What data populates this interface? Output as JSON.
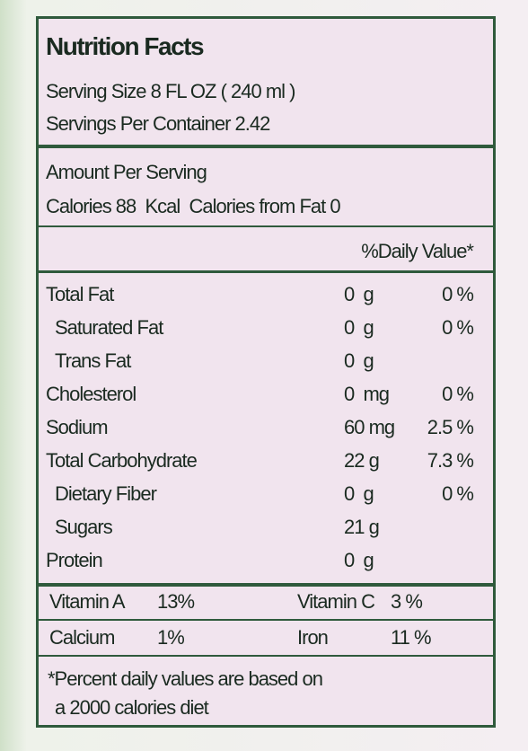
{
  "header": {
    "title": "Nutrition Facts",
    "serving_size": "Serving Size 8 FL OZ ( 240 ml )",
    "servings_per_container": "Servings Per Container 2.42"
  },
  "calories": {
    "amount_per_serving": "Amount Per Serving",
    "line": "Calories 88  Kcal  Calories from Fat 0"
  },
  "daily_value_header": "%Daily Value*",
  "nutrients": [
    {
      "name": "Total Fat",
      "amount": "0  g",
      "dv": "0 %",
      "indent": false
    },
    {
      "name": "Saturated Fat",
      "amount": "0  g",
      "dv": "0 %",
      "indent": true
    },
    {
      "name": "Trans Fat",
      "amount": "0  g",
      "indent": true
    },
    {
      "name": "Cholesterol",
      "amount": "0  mg",
      "dv": "0 %",
      "indent": false
    },
    {
      "name": "Sodium",
      "amount": "60 mg",
      "dv": "2.5 %",
      "indent": false
    },
    {
      "name": "Total Carbohydrate",
      "amount": "22 g",
      "dv": "7.3 %",
      "indent": false
    },
    {
      "name": "Dietary Fiber",
      "amount": "0  g",
      "dv": "0 %",
      "indent": true
    },
    {
      "name": "Sugars",
      "amount": "21 g",
      "indent": true
    },
    {
      "name": "Protein",
      "amount": "0  g",
      "indent": false
    }
  ],
  "vitamins": [
    [
      {
        "name": "Vitamin A",
        "value": "13%"
      },
      {
        "name": "Vitamin C",
        "value": "3 %"
      }
    ],
    [
      {
        "name": "Calcium",
        "value": "1%"
      },
      {
        "name": "Iron",
        "value": "11 %"
      }
    ]
  ],
  "footnote": [
    "*Percent daily values are based on",
    "a 2000 calories diet"
  ]
}
